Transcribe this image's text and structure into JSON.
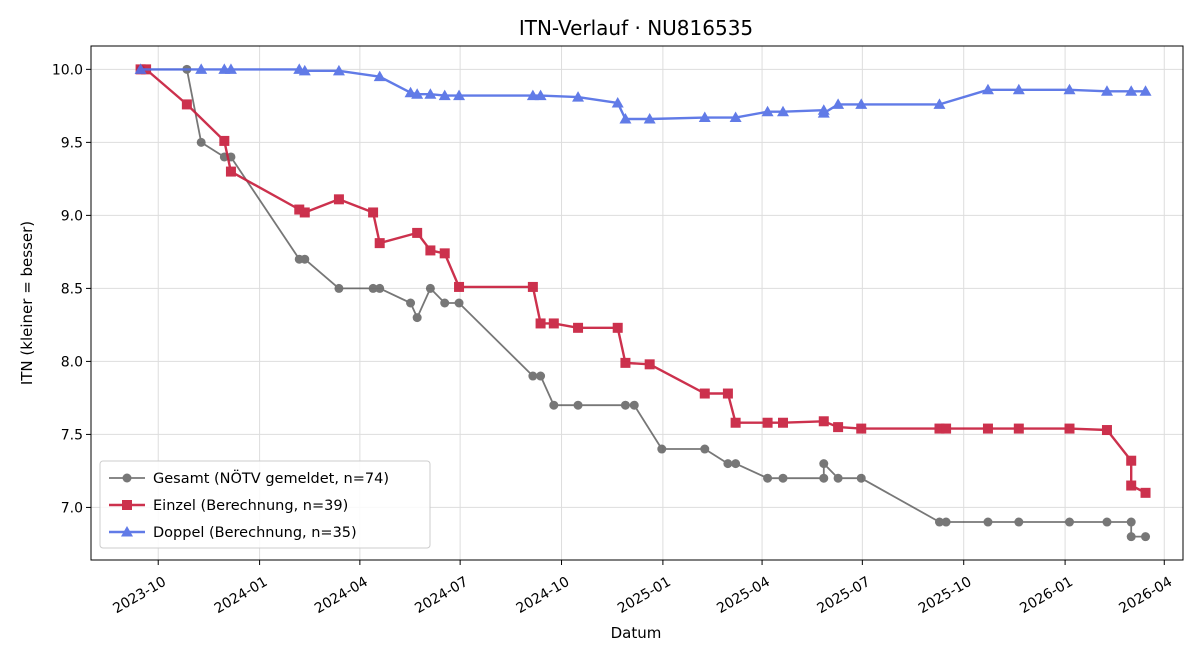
{
  "chart_data": {
    "type": "line",
    "title": "ITN-Verlauf · NU816535",
    "xlabel": "Datum",
    "ylabel": "ITN  (kleiner = besser)",
    "xlim": [
      "2023-08-01",
      "2026-04-18"
    ],
    "ylim": [
      6.64,
      10.16
    ],
    "yticks": [
      7.0,
      7.5,
      8.0,
      8.5,
      9.0,
      9.5,
      10.0
    ],
    "ytick_labels": [
      "7.0",
      "7.5",
      "8.0",
      "8.5",
      "9.0",
      "9.5",
      "10.0"
    ],
    "xticks": [
      "2023-10-01",
      "2024-01-01",
      "2024-04-01",
      "2024-07-01",
      "2024-10-01",
      "2025-01-01",
      "2025-04-01",
      "2025-07-01",
      "2025-10-01",
      "2026-01-01",
      "2026-04-01"
    ],
    "xtick_labels": [
      "2023-10",
      "2024-01",
      "2024-04",
      "2024-07",
      "2024-10",
      "2025-01",
      "2025-04",
      "2025-07",
      "2025-10",
      "2026-01",
      "2026-04"
    ],
    "grid": true,
    "legend_position": "lower-left",
    "series": [
      {
        "name": "Gesamt (NÖTV gemeldet, n=74)",
        "color": "#444444",
        "marker": "circle",
        "points": [
          [
            "2023-09-15",
            10.0
          ],
          [
            "2023-10-27",
            10.0
          ],
          [
            "2023-11-09",
            9.5
          ],
          [
            "2023-11-30",
            9.4
          ],
          [
            "2023-12-06",
            9.4
          ],
          [
            "2024-02-06",
            8.7
          ],
          [
            "2024-02-11",
            8.7
          ],
          [
            "2024-03-13",
            8.5
          ],
          [
            "2024-04-13",
            8.5
          ],
          [
            "2024-04-19",
            8.5
          ],
          [
            "2024-05-17",
            8.4
          ],
          [
            "2024-05-23",
            8.3
          ],
          [
            "2024-06-04",
            8.5
          ],
          [
            "2024-06-17",
            8.4
          ],
          [
            "2024-06-30",
            8.4
          ],
          [
            "2024-09-05",
            7.9
          ],
          [
            "2024-09-12",
            7.9
          ],
          [
            "2024-09-24",
            7.7
          ],
          [
            "2024-10-16",
            7.7
          ],
          [
            "2024-11-28",
            7.7
          ],
          [
            "2024-12-06",
            7.7
          ],
          [
            "2024-12-31",
            7.4
          ],
          [
            "2025-02-08",
            7.4
          ],
          [
            "2025-03-01",
            7.3
          ],
          [
            "2025-03-08",
            7.3
          ],
          [
            "2025-04-06",
            7.2
          ],
          [
            "2025-04-20",
            7.2
          ],
          [
            "2025-05-27",
            7.2
          ],
          [
            "2025-05-27",
            7.3
          ],
          [
            "2025-06-09",
            7.2
          ],
          [
            "2025-06-30",
            7.2
          ],
          [
            "2025-09-09",
            6.9
          ],
          [
            "2025-09-15",
            6.9
          ],
          [
            "2025-10-23",
            6.9
          ],
          [
            "2025-11-20",
            6.9
          ],
          [
            "2026-01-05",
            6.9
          ],
          [
            "2026-02-08",
            6.9
          ],
          [
            "2026-03-02",
            6.9
          ],
          [
            "2026-03-02",
            6.8
          ],
          [
            "2026-03-15",
            6.8
          ]
        ]
      },
      {
        "name": "Einzel (Berechnung, n=39)",
        "color": "#c8203e",
        "marker": "square",
        "points": [
          [
            "2023-09-15",
            10.0
          ],
          [
            "2023-09-20",
            10.0
          ],
          [
            "2023-10-27",
            9.76
          ],
          [
            "2023-11-30",
            9.51
          ],
          [
            "2023-12-06",
            9.3
          ],
          [
            "2024-02-06",
            9.04
          ],
          [
            "2024-02-11",
            9.02
          ],
          [
            "2024-03-13",
            9.11
          ],
          [
            "2024-04-13",
            9.02
          ],
          [
            "2024-04-19",
            8.81
          ],
          [
            "2024-05-23",
            8.88
          ],
          [
            "2024-06-04",
            8.76
          ],
          [
            "2024-06-17",
            8.74
          ],
          [
            "2024-06-30",
            8.51
          ],
          [
            "2024-09-05",
            8.51
          ],
          [
            "2024-09-12",
            8.26
          ],
          [
            "2024-09-24",
            8.26
          ],
          [
            "2024-10-16",
            8.23
          ],
          [
            "2024-11-21",
            8.23
          ],
          [
            "2024-11-28",
            7.99
          ],
          [
            "2024-12-20",
            7.98
          ],
          [
            "2025-02-08",
            7.78
          ],
          [
            "2025-03-01",
            7.78
          ],
          [
            "2025-03-08",
            7.58
          ],
          [
            "2025-04-06",
            7.58
          ],
          [
            "2025-04-20",
            7.58
          ],
          [
            "2025-05-27",
            7.59
          ],
          [
            "2025-06-09",
            7.55
          ],
          [
            "2025-06-30",
            7.54
          ],
          [
            "2025-09-09",
            7.54
          ],
          [
            "2025-09-15",
            7.54
          ],
          [
            "2025-10-23",
            7.54
          ],
          [
            "2025-11-20",
            7.54
          ],
          [
            "2026-01-05",
            7.54
          ],
          [
            "2026-02-08",
            7.53
          ],
          [
            "2026-03-02",
            7.32
          ],
          [
            "2026-03-02",
            7.15
          ],
          [
            "2026-03-15",
            7.1
          ]
        ]
      },
      {
        "name": "Doppel (Berechnung, n=35)",
        "color": "#5470e6",
        "marker": "triangle",
        "points": [
          [
            "2023-09-15",
            10.0
          ],
          [
            "2023-11-09",
            10.0
          ],
          [
            "2023-11-30",
            10.0
          ],
          [
            "2023-12-06",
            10.0
          ],
          [
            "2024-02-06",
            10.0
          ],
          [
            "2024-02-11",
            9.99
          ],
          [
            "2024-03-13",
            9.99
          ],
          [
            "2024-04-19",
            9.95
          ],
          [
            "2024-05-17",
            9.84
          ],
          [
            "2024-05-23",
            9.83
          ],
          [
            "2024-06-04",
            9.83
          ],
          [
            "2024-06-17",
            9.82
          ],
          [
            "2024-06-30",
            9.82
          ],
          [
            "2024-09-05",
            9.82
          ],
          [
            "2024-09-12",
            9.82
          ],
          [
            "2024-10-16",
            9.81
          ],
          [
            "2024-11-21",
            9.77
          ],
          [
            "2024-11-28",
            9.66
          ],
          [
            "2024-12-20",
            9.66
          ],
          [
            "2025-02-08",
            9.67
          ],
          [
            "2025-03-08",
            9.67
          ],
          [
            "2025-04-06",
            9.71
          ],
          [
            "2025-04-20",
            9.71
          ],
          [
            "2025-05-27",
            9.72
          ],
          [
            "2025-05-27",
            9.7
          ],
          [
            "2025-06-09",
            9.76
          ],
          [
            "2025-06-30",
            9.76
          ],
          [
            "2025-09-09",
            9.76
          ],
          [
            "2025-10-23",
            9.86
          ],
          [
            "2025-11-20",
            9.86
          ],
          [
            "2026-01-05",
            9.86
          ],
          [
            "2026-02-08",
            9.85
          ],
          [
            "2026-03-02",
            9.85
          ],
          [
            "2026-03-15",
            9.85
          ]
        ]
      }
    ]
  }
}
